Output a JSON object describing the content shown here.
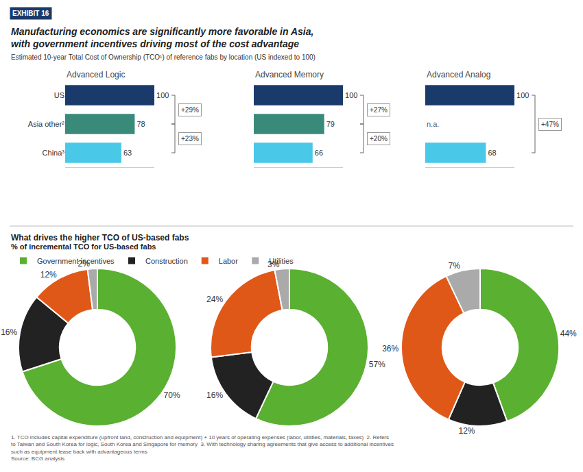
{
  "label": "EXHIBIT 16",
  "label_color": "#1a3a6b",
  "title": [
    "Manufacturing economics are significantly more favorable in Asia,",
    "with government incentives driving most of the cost advantage"
  ],
  "subtitle": "Estimated 10-year Total Cost of Ownership (TCO¹) of reference fabs by location (US indexed to 100)",
  "section_title": "What drives the higher TCO of US-based fabs",
  "section_subtitle": "% of incremental TCO for US-based fabs",
  "chart_data": [
    {
      "type": "bar",
      "orientation": "horizontal",
      "title": "Advanced Logic",
      "categories": [
        "US",
        "Asia other²",
        "China³"
      ],
      "values": [
        100,
        78,
        63
      ],
      "colors": [
        "#1a3a6b",
        "#3a8a7a",
        "#4ac8e8"
      ],
      "data_labels": true,
      "xlim": [
        0,
        100
      ],
      "tick_labels": "y",
      "grid": false,
      "annotations": [
        {
          "text": "+29%",
          "from": 0,
          "to": 1
        },
        {
          "text": "+23%",
          "from": 1,
          "to": 2
        }
      ]
    },
    {
      "type": "bar",
      "orientation": "horizontal",
      "title": "Advanced Memory",
      "categories": [
        null,
        null,
        null
      ],
      "values": [
        100,
        79,
        66
      ],
      "colors": [
        "#1a3a6b",
        "#3a8a7a",
        "#4ac8e8"
      ],
      "data_labels": true,
      "xlim": [
        0,
        100
      ],
      "tick_labels": false,
      "grid": false,
      "annotations": [
        {
          "text": "+27%",
          "from": 0,
          "to": 1
        },
        {
          "text": "+20%",
          "from": 1,
          "to": 2
        }
      ]
    },
    {
      "type": "bar",
      "orientation": "horizontal",
      "title": "Advanced Analog",
      "categories": [
        null,
        null,
        null
      ],
      "values": [
        100,
        null,
        68
      ],
      "colors": [
        "#1a3a6b",
        null,
        "#4ac8e8"
      ],
      "data_labels": true,
      "xlim": [
        0,
        100
      ],
      "tick_labels": false,
      "grid": false,
      "annotations": [
        {
          "text": "+47%",
          "from": 0,
          "to": 2
        },
        {
          "text": "n.a.",
          "at": 1
        }
      ]
    },
    {
      "type": "pie",
      "categories": [
        "Government incentives",
        "Construction",
        "Labor",
        "Utilities"
      ],
      "values": [
        70,
        16,
        12,
        2
      ],
      "value_labels": [
        "70%",
        "16%",
        "12%",
        "2%"
      ],
      "colors": [
        "#5ab030",
        "#222222",
        "#e05818",
        "#aaaaaa"
      ],
      "data_labels": true,
      "legend": "top left"
    },
    {
      "type": "pie",
      "categories": [
        "Government incentives",
        "Construction",
        "Labor",
        "Utilities"
      ],
      "values": [
        57,
        16,
        24,
        3
      ],
      "value_labels": [
        "57%",
        "16%",
        "24%",
        "3%"
      ],
      "colors": [
        "#5ab030",
        "#222222",
        "#e05818",
        "#aaaaaa"
      ],
      "data_labels": true
    },
    {
      "type": "pie",
      "categories": [
        "Government incentives",
        "Construction",
        "Labor",
        "Utilities"
      ],
      "values": [
        44,
        12,
        36,
        7
      ],
      "value_labels": [
        "44%",
        "12%",
        "36%",
        "7%"
      ],
      "colors": [
        "#5ab030",
        "#222222",
        "#e05818",
        "#aaaaaa"
      ],
      "data_labels": true
    }
  ],
  "footnotes": [
    "1. TCO includes capital expenditure (upfront land, construction and equipment) + 10 years of operating expenses (labor, utilities, materials, taxes)  2. Refers",
    "to Taiwan and South Korea for logic, South Korea and Singapore for memory  3. With technology sharing agreements that give access to additional incentives",
    "such as equipment lease back with advantageous terms",
    "Source: BCG analysis"
  ]
}
